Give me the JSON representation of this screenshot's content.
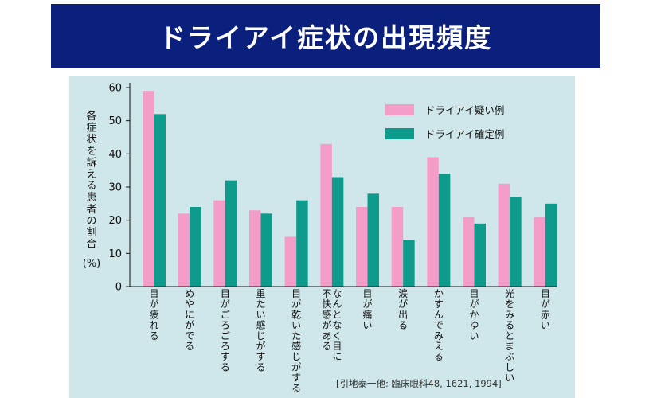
{
  "header": {
    "title": "ドライアイ症状の出現頻度"
  },
  "chart_data": {
    "type": "bar",
    "title": "ドライアイ症状の出現頻度",
    "ylabel": "各症状を訴える患者の割合",
    "yunit": "(%)",
    "ylim": [
      0,
      60
    ],
    "yticks": [
      0,
      10,
      20,
      30,
      40,
      50,
      60
    ],
    "legend_position": "top-right",
    "categories": [
      [
        "目が疲れる"
      ],
      [
        "めやにがでる"
      ],
      [
        "目がごろごろする"
      ],
      [
        "重たい感じがする"
      ],
      [
        "目が乾いた感じがする"
      ],
      [
        "なんとなく目に",
        "不快感がある"
      ],
      [
        "目が痛い"
      ],
      [
        "涙が出る"
      ],
      [
        "かすんでみえる"
      ],
      [
        "目がかゆい"
      ],
      [
        "光をみるとまぶしい"
      ],
      [
        "目が赤い"
      ]
    ],
    "series": [
      {
        "name": "ドライアイ疑い例",
        "color": "#f59dc9",
        "values": [
          59,
          22,
          26,
          23,
          15,
          43,
          24,
          24,
          39,
          21,
          31,
          21
        ]
      },
      {
        "name": "ドライアイ確定例",
        "color": "#0f9b8c",
        "values": [
          52,
          24,
          32,
          22,
          26,
          33,
          28,
          14,
          34,
          19,
          27,
          25
        ]
      }
    ],
    "source": "[引地泰一他: 臨床眼科48, 1621, 1994]"
  }
}
